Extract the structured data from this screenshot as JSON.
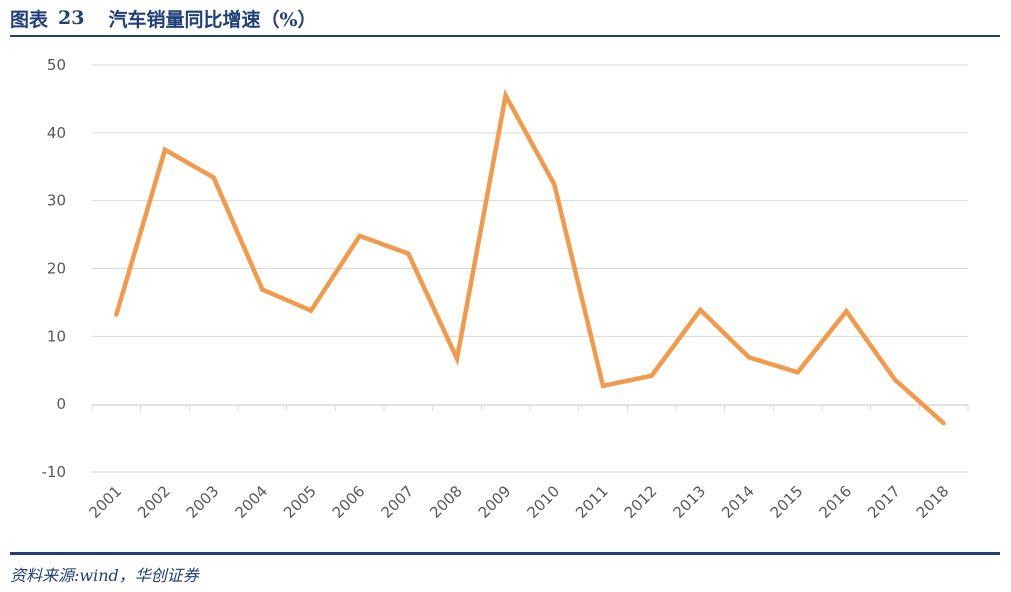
{
  "header": {
    "fig_label": "图表",
    "fig_number": "23",
    "title": "汽车销量同比增速（%）"
  },
  "source": "资料来源:wind，华创证券",
  "colors": {
    "line": "#F39A4A",
    "accent": "#1F3F7A",
    "grid": "#D9D9D9",
    "tick_text": "#595959"
  },
  "chart_data": {
    "type": "line",
    "categories": [
      "2001",
      "2002",
      "2003",
      "2004",
      "2005",
      "2006",
      "2007",
      "2008",
      "2009",
      "2010",
      "2011",
      "2012",
      "2013",
      "2014",
      "2015",
      "2016",
      "2017",
      "2018"
    ],
    "series": [
      {
        "values": [
          13.2,
          37.5,
          33.4,
          16.9,
          13.8,
          24.8,
          22.2,
          6.7,
          45.5,
          32.4,
          2.7,
          4.2,
          13.9,
          6.9,
          4.7,
          13.7,
          3.6,
          -2.8
        ]
      }
    ],
    "yticks": [
      -10,
      0,
      10,
      20,
      30,
      40,
      50
    ],
    "ylim": [
      -10,
      50
    ],
    "grid": true,
    "legend": "none"
  }
}
